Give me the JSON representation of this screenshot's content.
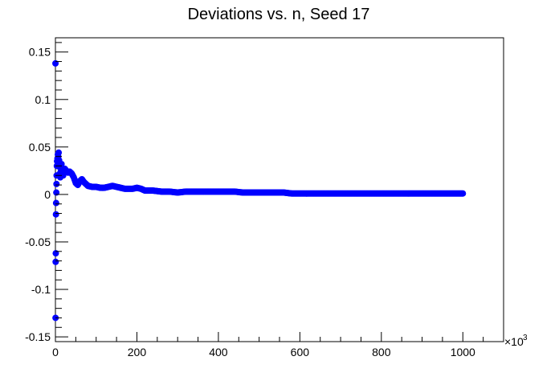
{
  "chart_data": {
    "type": "scatter",
    "title": "Deviations vs. n, Seed 17",
    "xlabel": "",
    "ylabel": "",
    "x_multiplier_label": "×10",
    "x_multiplier_exponent": "3",
    "xlim": [
      0,
      1100
    ],
    "ylim": [
      -0.155,
      0.165
    ],
    "x_ticks": [
      0,
      200,
      400,
      600,
      800,
      1000
    ],
    "x_tick_labels": [
      "0",
      "200",
      "400",
      "600",
      "800",
      "1000"
    ],
    "y_ticks": [
      -0.15,
      -0.1,
      -0.05,
      0,
      0.05,
      0.1,
      0.15
    ],
    "y_tick_labels": [
      "-0.15",
      "-0.1",
      "-0.05",
      "0",
      "0.05",
      "0.1",
      "0.15"
    ],
    "grid": false,
    "marker_color": "#0000ff",
    "series": [
      {
        "x": [
          0.1,
          0.3,
          0.6,
          0.9,
          1.3,
          1.7,
          2.2,
          2.6,
          3.0,
          3.5,
          4.0,
          5,
          6,
          7,
          8,
          9,
          10,
          11,
          12,
          13,
          14,
          15,
          17,
          19,
          21,
          23,
          25,
          28,
          31,
          35,
          40,
          45,
          50,
          55,
          60,
          65,
          70,
          75,
          80,
          90,
          100,
          110,
          120,
          130,
          140,
          150,
          160,
          170,
          180,
          190,
          200,
          210,
          220,
          240,
          260,
          280,
          300,
          320,
          340,
          360,
          380,
          400,
          420,
          440,
          460,
          480,
          500,
          520,
          540,
          560,
          580,
          600,
          620,
          640,
          660,
          680,
          700,
          720,
          740,
          760,
          780,
          800,
          820,
          840,
          860,
          880,
          900,
          920,
          940,
          960,
          980,
          1000
        ],
        "y": [
          0.138,
          -0.13,
          -0.071,
          -0.062,
          -0.021,
          -0.009,
          0.002,
          0.011,
          0.02,
          0.03,
          0.035,
          0.038,
          0.042,
          0.04,
          0.044,
          0.036,
          0.029,
          0.022,
          0.018,
          0.024,
          0.03,
          0.032,
          0.026,
          0.02,
          0.024,
          0.027,
          0.026,
          0.024,
          0.023,
          0.024,
          0.022,
          0.018,
          0.012,
          0.01,
          0.014,
          0.016,
          0.013,
          0.011,
          0.009,
          0.008,
          0.008,
          0.007,
          0.007,
          0.008,
          0.009,
          0.008,
          0.007,
          0.006,
          0.006,
          0.006,
          0.007,
          0.006,
          0.004,
          0.004,
          0.003,
          0.003,
          0.002,
          0.003,
          0.003,
          0.003,
          0.003,
          0.003,
          0.003,
          0.003,
          0.002,
          0.002,
          0.002,
          0.002,
          0.002,
          0.002,
          0.001,
          0.001,
          0.001,
          0.001,
          0.001,
          0.001,
          0.001,
          0.001,
          0.001,
          0.001,
          0.001,
          0.001,
          0.001,
          0.001,
          0.001,
          0.001,
          0.001,
          0.001,
          0.001,
          0.001,
          0.001,
          0.001
        ]
      }
    ]
  }
}
